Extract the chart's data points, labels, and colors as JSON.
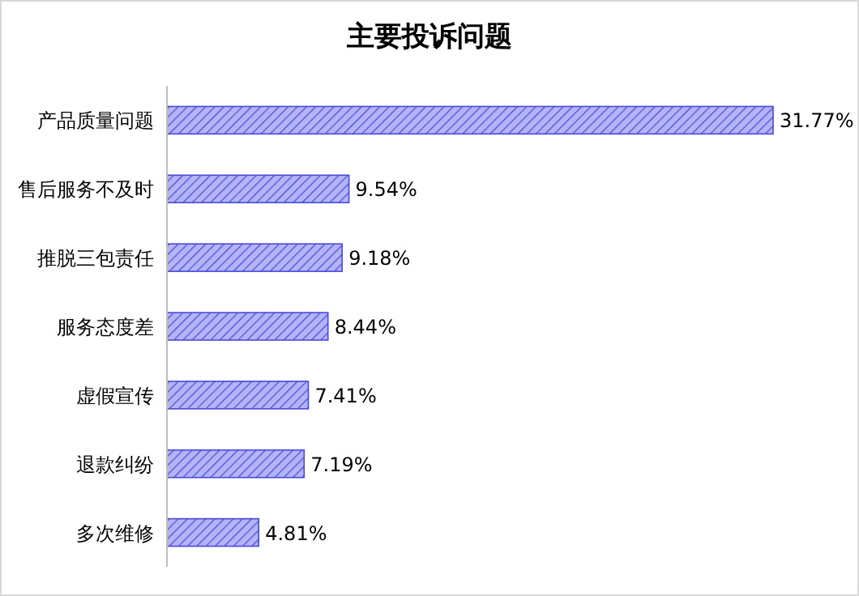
{
  "chart_data": {
    "type": "bar",
    "orientation": "horizontal",
    "title": "主要投诉问题",
    "categories": [
      "产品质量问题",
      "售后服务不及时",
      "推脱三包责任",
      "服务态度差",
      "虚假宣传",
      "退款纠纷",
      "多次维修"
    ],
    "series": [
      {
        "color": "#4a4ad8",
        "values": [
          31.77,
          9.54,
          9.18,
          8.44,
          7.41,
          7.19,
          4.81
        ],
        "value_labels": [
          "31.77%",
          "9.54%",
          "9.18%",
          "8.44%",
          "7.41%",
          "7.19%",
          "4.81%"
        ]
      }
    ]
  }
}
